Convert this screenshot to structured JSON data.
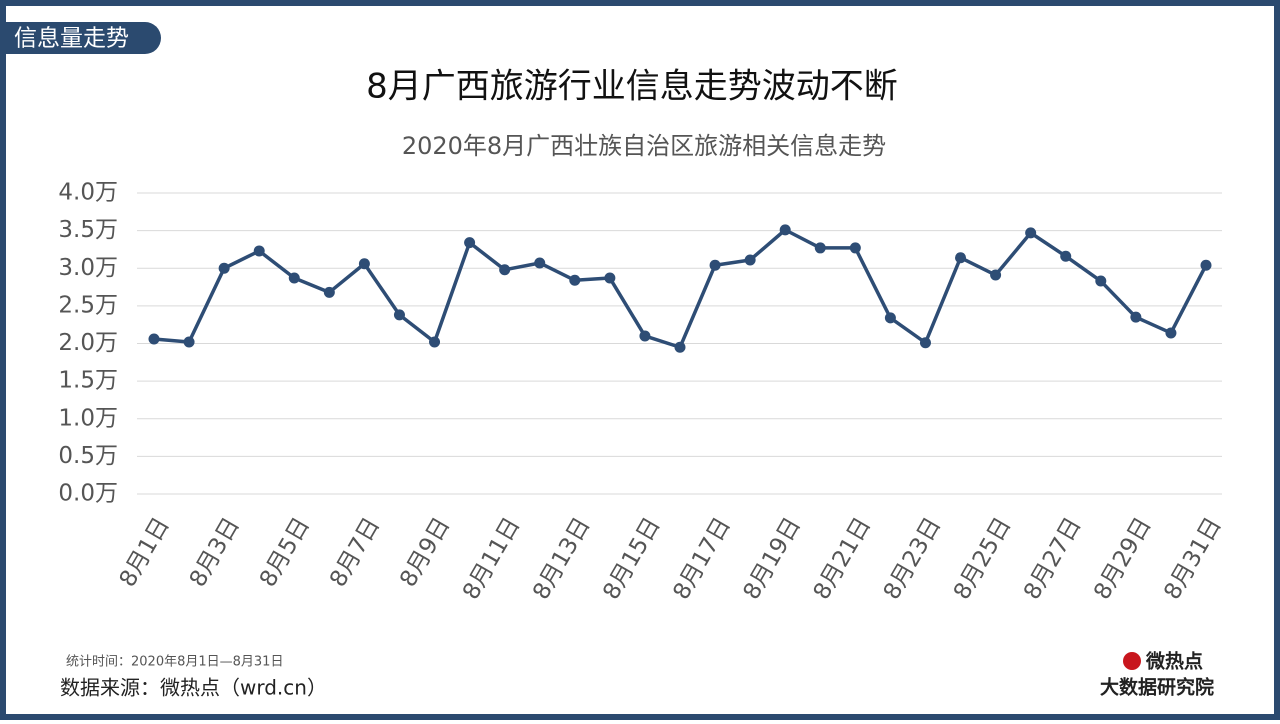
{
  "header": {
    "tag": "信息量走势"
  },
  "chart_data": {
    "type": "line",
    "title": "8月广西旅游行业信息走势波动不断",
    "subtitle": "2020年8月广西壮族自治区旅游相关信息走势",
    "categories": [
      "8月1日",
      null,
      "8月3日",
      null,
      "8月5日",
      null,
      "8月7日",
      null,
      "8月9日",
      null,
      "8月11日",
      null,
      "8月13日",
      null,
      "8月15日",
      null,
      "8月17日",
      null,
      "8月19日",
      null,
      "8月21日",
      null,
      "8月23日",
      null,
      "8月25日",
      null,
      "8月27日",
      null,
      "8月29日",
      null,
      "8月31日"
    ],
    "values": [
      2.06,
      2.02,
      3.0,
      3.23,
      2.87,
      2.68,
      3.06,
      2.38,
      2.02,
      3.34,
      2.98,
      3.07,
      2.84,
      2.87,
      2.1,
      1.95,
      3.04,
      3.11,
      3.51,
      3.27,
      3.27,
      2.34,
      2.01,
      3.14,
      2.91,
      3.47,
      3.16,
      2.83,
      2.35,
      2.14,
      3.04
    ],
    "color": "#2e4d75",
    "ylim": [
      0,
      4
    ],
    "yticks": [
      {
        "value": 0,
        "label": "0.0万"
      },
      {
        "value": 0.5,
        "label": "0.5万"
      },
      {
        "value": 1,
        "label": "1.0万"
      },
      {
        "value": 1.5,
        "label": "1.5万"
      },
      {
        "value": 2,
        "label": "2.0万"
      },
      {
        "value": 2.5,
        "label": "2.5万"
      },
      {
        "value": 3,
        "label": "3.0万"
      },
      {
        "value": 3.5,
        "label": "3.5万"
      },
      {
        "value": 4,
        "label": "4.0万"
      }
    ],
    "grid": true
  },
  "footer": {
    "period": "统计时间：2020年8月1日—8月31日",
    "source": "数据来源：微热点（wrd.cn）",
    "logo_top": "微热点",
    "logo_bottom": "大数据研究院"
  }
}
